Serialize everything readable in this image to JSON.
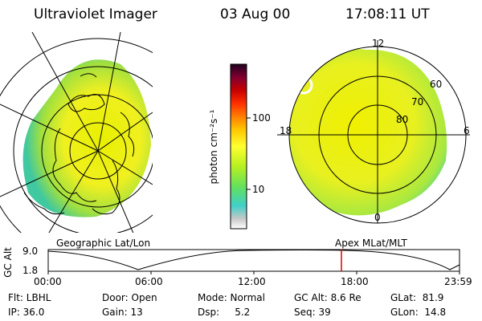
{
  "header": {
    "title": "Ultraviolet Imager",
    "date": "03 Aug 00",
    "time": "17:08:11 UT"
  },
  "left_panel": {
    "label": "Geographic Lat/Lon"
  },
  "right_panel": {
    "label": "Apex MLat/MLT",
    "mlt_labels": {
      "top": "12",
      "left": "18",
      "right": "6",
      "bottom": "0"
    },
    "lat_labels": [
      "60",
      "70",
      "80"
    ]
  },
  "colorbar": {
    "unit_label": "photon cm⁻²s⁻¹",
    "ticks": [
      "100",
      "10"
    ],
    "colors": [
      "#ffffff",
      "#c8c8c8",
      "#40e0d0",
      "#7fe040",
      "#c8f020",
      "#ffff30",
      "#ffd000",
      "#ff9000",
      "#ff4000",
      "#d00000",
      "#800020",
      "#300030"
    ]
  },
  "altitude_plot": {
    "y_axis_label": "GC Alt",
    "y_ticks": [
      "9.0",
      "1.8"
    ],
    "x_ticks": [
      "00:00",
      "06:00",
      "12:00",
      "18:00",
      "23:59"
    ],
    "marker_color": "#e00000"
  },
  "info": {
    "flt": "Flt: LBHL",
    "door": "Door: Open",
    "mode": "Mode: Normal",
    "gc_alt": "GC Alt: 8.6 Re",
    "glat": "GLat:  81.9",
    "ip": "IP: 36.0",
    "gain": "Gain: 13",
    "dsp": "Dsp:     5.2",
    "seq": "Seq: 39",
    "glon": "GLon:  14.8"
  }
}
